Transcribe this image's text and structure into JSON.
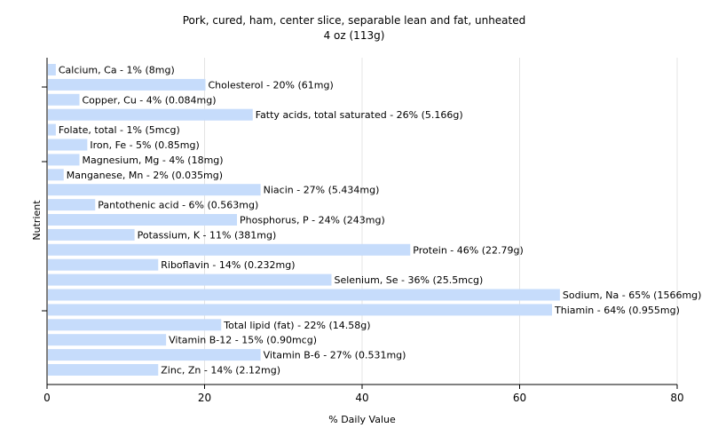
{
  "chart_data": {
    "type": "bar",
    "orientation": "horizontal",
    "title": "Pork, cured, ham, center slice, separable lean and fat, unheated",
    "subtitle": "4 oz (113g)",
    "xlabel": "% Daily Value",
    "ylabel": "Nutrient",
    "xlim": [
      0,
      80
    ],
    "xticks": [
      0,
      20,
      40,
      60,
      80
    ],
    "grid": true,
    "bar_color": "#c6dcfb",
    "categories": [
      "Calcium, Ca",
      "Cholesterol",
      "Copper, Cu",
      "Fatty acids, total saturated",
      "Folate, total",
      "Iron, Fe",
      "Magnesium, Mg",
      "Manganese, Mn",
      "Niacin",
      "Pantothenic acid",
      "Phosphorus, P",
      "Potassium, K",
      "Protein",
      "Riboflavin",
      "Selenium, Se",
      "Sodium, Na",
      "Thiamin",
      "Total lipid (fat)",
      "Vitamin B-12",
      "Vitamin B-6",
      "Zinc, Zn"
    ],
    "values": [
      1,
      20,
      4,
      26,
      1,
      5,
      4,
      2,
      27,
      6,
      24,
      11,
      46,
      14,
      36,
      65,
      64,
      22,
      15,
      27,
      14
    ],
    "labels": [
      "Calcium, Ca - 1% (8mg)",
      "Cholesterol - 20% (61mg)",
      "Copper, Cu - 4% (0.084mg)",
      "Fatty acids, total saturated - 26% (5.166g)",
      "Folate, total - 1% (5mcg)",
      "Iron, Fe - 5% (0.85mg)",
      "Magnesium, Mg - 4% (18mg)",
      "Manganese, Mn - 2% (0.035mg)",
      "Niacin - 27% (5.434mg)",
      "Pantothenic acid - 6% (0.563mg)",
      "Phosphorus, P - 24% (243mg)",
      "Potassium, K - 11% (381mg)",
      "Protein - 46% (22.79g)",
      "Riboflavin - 14% (0.232mg)",
      "Selenium, Se - 36% (25.5mcg)",
      "Sodium, Na - 65% (1566mg)",
      "Thiamin - 64% (0.955mg)",
      "Total lipid (fat) - 22% (14.58g)",
      "Vitamin B-12 - 15% (0.90mcg)",
      "Vitamin B-6 - 27% (0.531mg)",
      "Zinc, Zn - 14% (2.12mg)"
    ]
  }
}
